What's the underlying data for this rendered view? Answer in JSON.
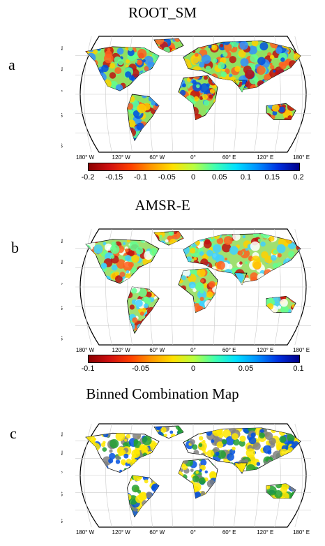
{
  "panels": [
    {
      "letter": "a",
      "title": "ROOT_SM",
      "colorbar": {
        "ticks": [
          "-0.2",
          "-0.15",
          "-0.1",
          "-0.05",
          "0",
          "0.05",
          "0.1",
          "0.15",
          "0.2"
        ],
        "colors": [
          "#8b0000",
          "#d01010",
          "#ff4000",
          "#ff9a00",
          "#ffe000",
          "#b8ff40",
          "#40ffb0",
          "#00e0ff",
          "#0090ff",
          "#0030e0",
          "#00008b"
        ]
      }
    },
    {
      "letter": "b",
      "title": "AMSR-E",
      "colorbar": {
        "ticks": [
          "-0.1",
          "-0.05",
          "0",
          "0.05",
          "0.1"
        ],
        "colors": [
          "#8b0000",
          "#d01010",
          "#ff4000",
          "#ff9a00",
          "#ffe000",
          "#b8ff40",
          "#40ffb0",
          "#00e0ff",
          "#0090ff",
          "#0030e0",
          "#00008b"
        ]
      }
    },
    {
      "letter": "c",
      "title": "Binned Combination Map",
      "colorbar": null
    }
  ],
  "map_labels": {
    "lat": [
      "60° N",
      "30° N",
      "0°",
      "30° S",
      "60° S"
    ],
    "lon": [
      "180° W",
      "120° W",
      "60° W",
      "0°",
      "60° E",
      "120° E",
      "180° E"
    ]
  },
  "colors": {
    "land_base_a": "#90e060",
    "land_base_b": "#a0e070",
    "land_base_c": "#ffffff",
    "wet": "#0050e0",
    "dry": "#c01010",
    "yellow": "#ffe800",
    "green": "#22a030"
  }
}
